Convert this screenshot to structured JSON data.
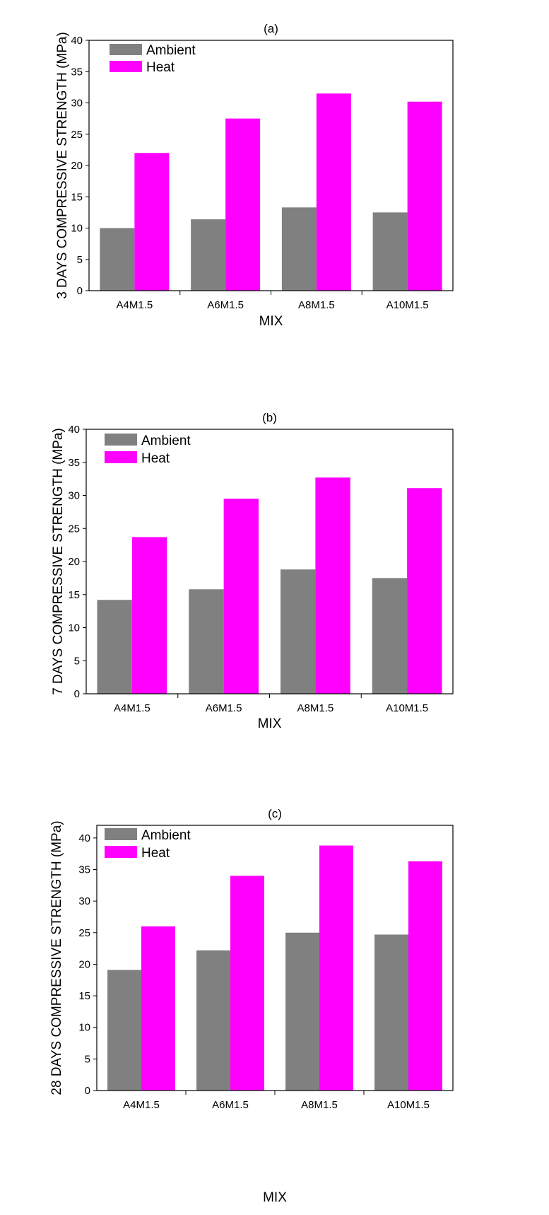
{
  "chart_data": [
    {
      "type": "bar",
      "title": "(a)",
      "xlabel": "MIX",
      "ylabel": "3 DAYS COMPRESSIVE STRENGTH (MPa)",
      "categories": [
        "A4M1.5",
        "A6M1.5",
        "A8M1.5",
        "A10M1.5"
      ],
      "ylim": [
        0,
        40
      ],
      "yticks": [
        0,
        5,
        10,
        15,
        20,
        25,
        30,
        35,
        40
      ],
      "legend_position": "top-left",
      "grid": false,
      "series": [
        {
          "name": "Ambient",
          "color": "#808080",
          "values": [
            10.0,
            11.4,
            13.3,
            12.5
          ]
        },
        {
          "name": "Heat",
          "color": "#ff00ff",
          "values": [
            22.0,
            27.5,
            31.5,
            30.2
          ]
        }
      ]
    },
    {
      "type": "bar",
      "title": "(b)",
      "xlabel": "MIX",
      "ylabel": "7 DAYS COMPRESSIVE STRENGTH (MPa)",
      "categories": [
        "A4M1.5",
        "A6M1.5",
        "A8M1.5",
        "A10M1.5"
      ],
      "ylim": [
        0,
        40
      ],
      "yticks": [
        0,
        5,
        10,
        15,
        20,
        25,
        30,
        35,
        40
      ],
      "legend_position": "top-left",
      "grid": false,
      "series": [
        {
          "name": "Ambient",
          "color": "#808080",
          "values": [
            14.2,
            15.8,
            18.8,
            17.5
          ]
        },
        {
          "name": "Heat",
          "color": "#ff00ff",
          "values": [
            23.7,
            29.5,
            32.7,
            31.1
          ]
        }
      ]
    },
    {
      "type": "bar",
      "title": "(c)",
      "xlabel": "MIX",
      "ylabel": "28 DAYS COMPRESSIVE STRENGTH (MPa)",
      "categories": [
        "A4M1.5",
        "A6M1.5",
        "A8M1.5",
        "A10M1.5"
      ],
      "ylim": [
        0,
        42
      ],
      "yticks": [
        0,
        5,
        10,
        15,
        20,
        25,
        30,
        35,
        40
      ],
      "legend_position": "top-left",
      "grid": false,
      "series": [
        {
          "name": "Ambient",
          "color": "#808080",
          "values": [
            19.1,
            22.2,
            25.0,
            24.7
          ]
        },
        {
          "name": "Heat",
          "color": "#ff00ff",
          "values": [
            26.0,
            34.0,
            38.8,
            36.3
          ]
        }
      ]
    }
  ]
}
